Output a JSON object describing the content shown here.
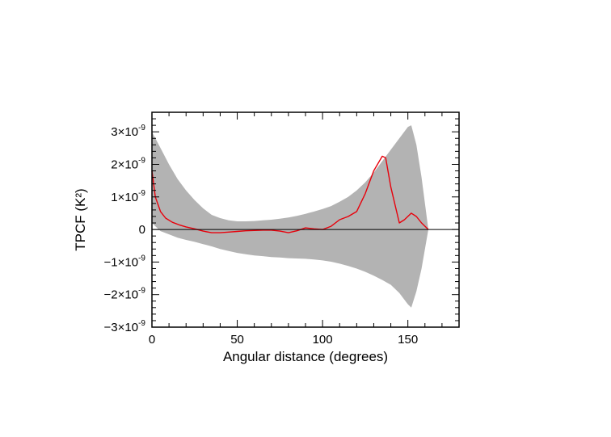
{
  "chart_data": {
    "type": "line",
    "title": "",
    "xlabel": "Angular distance (degrees)",
    "ylabel": "TPCF (K²)",
    "xlim": [
      0,
      180
    ],
    "ylim": [
      -3e-09,
      3.6e-09
    ],
    "grid": false,
    "x_ticks": [
      {
        "value": 0,
        "label": "0"
      },
      {
        "value": 50,
        "label": "50"
      },
      {
        "value": 100,
        "label": "100"
      },
      {
        "value": 150,
        "label": "150"
      }
    ],
    "y_ticks": [
      {
        "value": 3e-09,
        "mantissa": "3×10",
        "exp": "-9"
      },
      {
        "value": 2e-09,
        "mantissa": "2×10",
        "exp": "-9"
      },
      {
        "value": 1e-09,
        "mantissa": "1×10",
        "exp": "-9"
      },
      {
        "value": 0,
        "mantissa": "0",
        "exp": ""
      },
      {
        "value": -1e-09,
        "mantissa": "−1×10",
        "exp": "-9"
      },
      {
        "value": -2e-09,
        "mantissa": "−2×10",
        "exp": "-9"
      },
      {
        "value": -3e-09,
        "mantissa": "−3×10",
        "exp": "-9"
      }
    ],
    "band": {
      "color": "#b3b3b3",
      "x": [
        0,
        5,
        10,
        15,
        20,
        25,
        30,
        35,
        40,
        45,
        50,
        55,
        60,
        65,
        70,
        75,
        80,
        85,
        90,
        95,
        100,
        105,
        110,
        115,
        120,
        125,
        130,
        135,
        140,
        145,
        150,
        152,
        155,
        158,
        162
      ],
      "upper": [
        3e-09,
        2.5e-09,
        2e-09,
        1.55e-09,
        1.2e-09,
        9e-10,
        6.5e-10,
        4.5e-10,
        3.5e-10,
        2.8e-10,
        2.5e-10,
        2.5e-10,
        2.6e-10,
        2.8e-10,
        3e-10,
        3.3e-10,
        3.7e-10,
        4.2e-10,
        4.8e-10,
        5.5e-10,
        6.3e-10,
        7.2e-10,
        8.5e-10,
        1e-09,
        1.2e-09,
        1.45e-09,
        1.75e-09,
        2.1e-09,
        2.45e-09,
        2.8e-09,
        3.15e-09,
        3.2e-09,
        2.6e-09,
        1.6e-09,
        0.0
      ],
      "lower": [
        2e-10,
        -5e-11,
        -1.5e-10,
        -2.5e-10,
        -3.2e-10,
        -3.8e-10,
        -4.5e-10,
        -5.2e-10,
        -6e-10,
        -6.6e-10,
        -7.2e-10,
        -7.6e-10,
        -8e-10,
        -8.2e-10,
        -8.5e-10,
        -8.6e-10,
        -8.8e-10,
        -8.9e-10,
        -9e-10,
        -9.2e-10,
        -9.5e-10,
        -9.9e-10,
        -1.05e-09,
        -1.12e-09,
        -1.2e-09,
        -1.3e-09,
        -1.42e-09,
        -1.55e-09,
        -1.7e-09,
        -1.95e-09,
        -2.3e-09,
        -2.4e-09,
        -1.9e-09,
        -1.2e-09,
        0.0
      ]
    },
    "series": [
      {
        "color": "#e8000b",
        "x": [
          0,
          2,
          5,
          8,
          12,
          16,
          20,
          25,
          30,
          35,
          40,
          45,
          50,
          55,
          60,
          65,
          70,
          75,
          80,
          85,
          90,
          95,
          100,
          105,
          110,
          115,
          120,
          125,
          130,
          135,
          137,
          140,
          145,
          148,
          152,
          155,
          158,
          162
        ],
        "y": [
          1.8e-09,
          1e-09,
          5.5e-10,
          3.5e-10,
          2.2e-10,
          1.4e-10,
          8e-11,
          2e-11,
          -5e-11,
          -1e-10,
          -1e-10,
          -8e-11,
          -6e-11,
          -4e-11,
          -3e-11,
          -2e-11,
          -2e-11,
          -5e-11,
          -1e-10,
          -4e-11,
          5e-11,
          2e-11,
          0.0,
          1e-10,
          3e-10,
          4e-10,
          5.5e-10,
          1.1e-09,
          1.8e-09,
          2.25e-09,
          2.2e-09,
          1.3e-09,
          2e-10,
          3e-10,
          5e-10,
          4e-10,
          2e-10,
          0.0
        ]
      }
    ],
    "zero_line": {
      "value": 0,
      "color": "#000000"
    }
  }
}
